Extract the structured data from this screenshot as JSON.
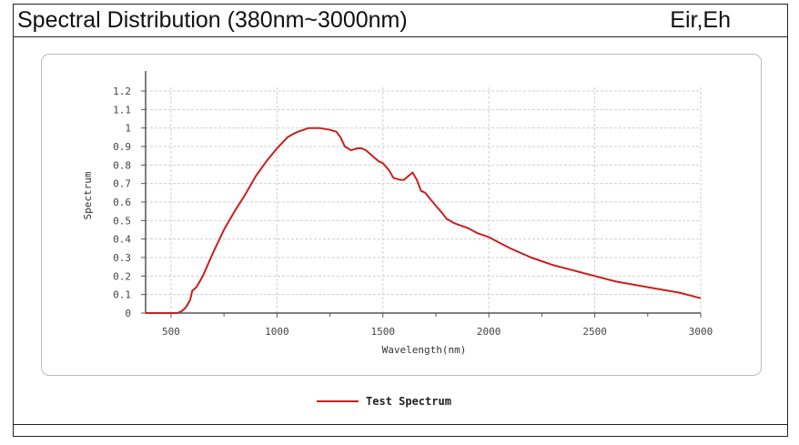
{
  "header": {
    "title": "Spectral Distribution (380nm~3000nm)",
    "label": "Eir,Eh"
  },
  "chart_data": {
    "type": "line",
    "title": "",
    "xlabel": "Wavelength(nm)",
    "ylabel": "Spectrum",
    "xlim": [
      380,
      3000
    ],
    "ylim": [
      0,
      1.2
    ],
    "x_ticks": [
      500,
      1000,
      1500,
      2000,
      2500,
      3000
    ],
    "y_ticks": [
      0,
      0.1,
      0.2,
      0.3,
      0.4,
      0.5,
      0.6,
      0.7,
      0.8,
      0.9,
      1,
      1.1,
      1.2
    ],
    "grid": true,
    "legend_position": "bottom-center",
    "colors": {
      "line": "#c8201e",
      "grid": "#cfcfcf",
      "axis": "#555555"
    },
    "series": [
      {
        "name": "Test Spectrum",
        "x": [
          380,
          450,
          500,
          530,
          550,
          570,
          590,
          600,
          620,
          650,
          700,
          750,
          800,
          850,
          900,
          950,
          1000,
          1050,
          1080,
          1100,
          1150,
          1200,
          1250,
          1280,
          1300,
          1320,
          1350,
          1380,
          1400,
          1420,
          1450,
          1480,
          1500,
          1530,
          1550,
          1580,
          1600,
          1620,
          1640,
          1660,
          1680,
          1700,
          1720,
          1750,
          1780,
          1800,
          1830,
          1850,
          1900,
          1950,
          2000,
          2050,
          2100,
          2200,
          2300,
          2400,
          2500,
          2600,
          2700,
          2800,
          2900,
          3000
        ],
        "y": [
          0,
          0,
          0,
          0,
          0.01,
          0.03,
          0.07,
          0.12,
          0.14,
          0.2,
          0.33,
          0.45,
          0.55,
          0.64,
          0.74,
          0.82,
          0.89,
          0.95,
          0.97,
          0.98,
          1.0,
          1.0,
          0.99,
          0.98,
          0.95,
          0.9,
          0.88,
          0.89,
          0.89,
          0.88,
          0.85,
          0.82,
          0.81,
          0.77,
          0.73,
          0.72,
          0.72,
          0.74,
          0.76,
          0.72,
          0.66,
          0.65,
          0.62,
          0.58,
          0.54,
          0.51,
          0.49,
          0.48,
          0.46,
          0.43,
          0.41,
          0.38,
          0.35,
          0.3,
          0.26,
          0.23,
          0.2,
          0.17,
          0.15,
          0.13,
          0.11,
          0.08
        ]
      }
    ]
  }
}
